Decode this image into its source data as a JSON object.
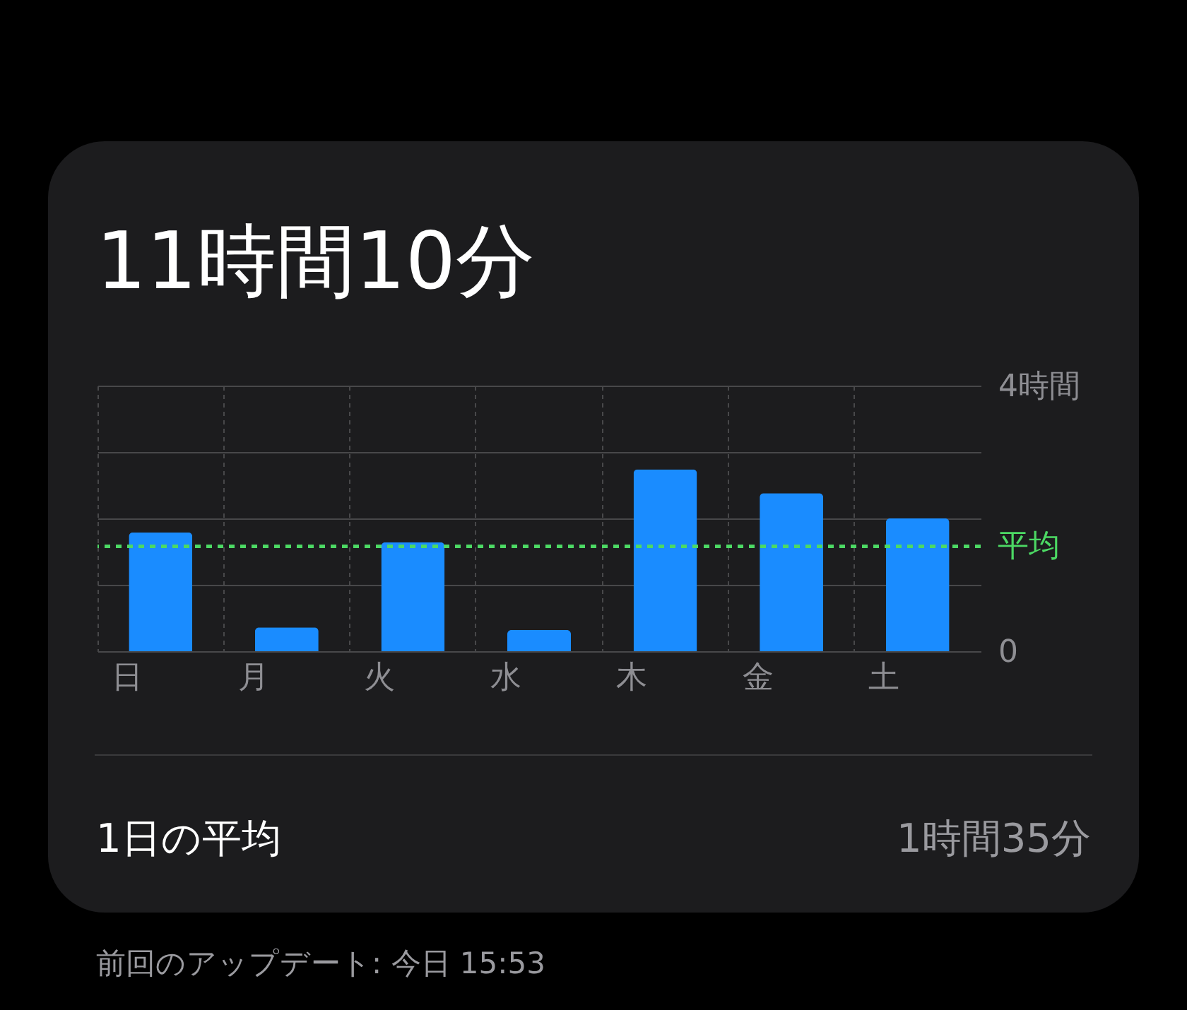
{
  "chart_data": {
    "type": "bar",
    "title": "11時間10分",
    "categories": [
      "日",
      "月",
      "火",
      "水",
      "木",
      "金",
      "土"
    ],
    "values": [
      1.79,
      0.36,
      1.64,
      0.32,
      2.74,
      2.38,
      2.0
    ],
    "color": "#1a8cff",
    "ylim": [
      0,
      4
    ],
    "yticks": [
      {
        "value": 0,
        "label": "0"
      },
      {
        "value": 1,
        "label": null
      },
      {
        "value": 2,
        "label": null
      },
      {
        "value": 3,
        "label": null
      },
      {
        "value": 4,
        "label": "4時間"
      }
    ],
    "grid": true,
    "ref_lines": [
      {
        "axis": "y",
        "value": 1.58,
        "label": "平均",
        "color": "#4cd964",
        "line_style": "dashed"
      }
    ],
    "annotations": [
      "1日の平均",
      "1時間35分",
      "前回のアップデート: 今日 15:53"
    ]
  }
}
